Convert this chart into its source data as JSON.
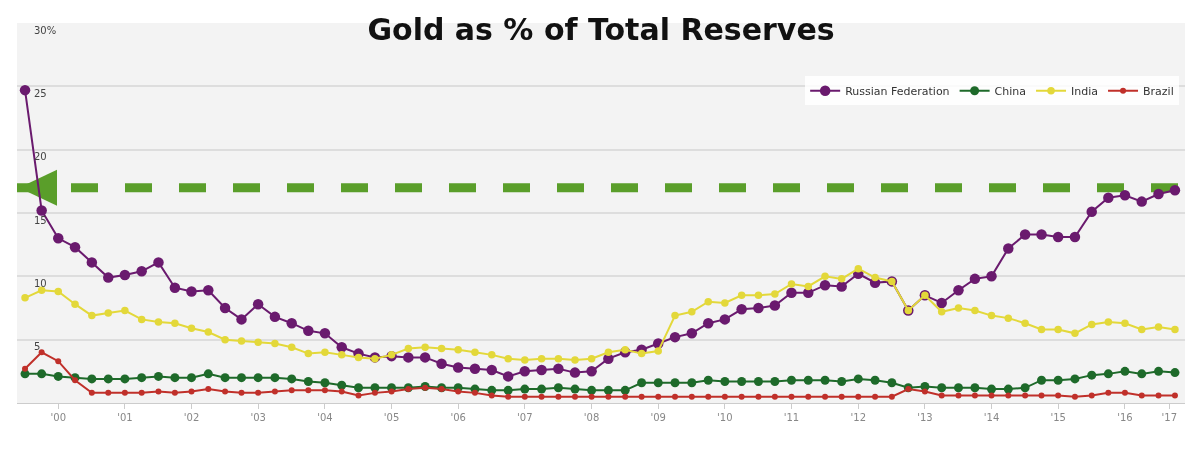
{
  "chart_data": {
    "type": "line",
    "title": "Gold as % of Total Reserves",
    "x": [
      "2000-01",
      "2000-04",
      "2000-07",
      "2000-10",
      "2001-01",
      "2001-04",
      "2001-07",
      "2001-10",
      "2002-01",
      "2002-04",
      "2002-07",
      "2002-10",
      "2003-01",
      "2003-04",
      "2003-07",
      "2003-10",
      "2004-01",
      "2004-04",
      "2004-07",
      "2004-10",
      "2005-01",
      "2005-04",
      "2005-07",
      "2005-10",
      "2006-01",
      "2006-04",
      "2006-07",
      "2006-10",
      "2007-01",
      "2007-04",
      "2007-07",
      "2007-10",
      "2008-01",
      "2008-04",
      "2008-07",
      "2008-10",
      "2009-01",
      "2009-04",
      "2009-07",
      "2009-10",
      "2010-01",
      "2010-04",
      "2010-07",
      "2010-10",
      "2011-01",
      "2011-04",
      "2011-07",
      "2011-10",
      "2012-01",
      "2012-04",
      "2012-07",
      "2012-10",
      "2013-01",
      "2013-04",
      "2013-07",
      "2013-10",
      "2014-01",
      "2014-04",
      "2014-07",
      "2014-10",
      "2015-01",
      "2015-04",
      "2015-07",
      "2015-10",
      "2016-01",
      "2016-04",
      "2016-07",
      "2016-10",
      "2017-01",
      "2017-04"
    ],
    "series": [
      {
        "name": "Russian Federation",
        "color": "#6a1a6e",
        "values": [
          24.7,
          15.2,
          13.0,
          12.3,
          11.1,
          9.9,
          10.1,
          10.4,
          11.1,
          9.1,
          8.8,
          8.9,
          7.5,
          6.6,
          7.8,
          6.8,
          6.3,
          5.7,
          5.5,
          4.4,
          3.9,
          3.6,
          3.7,
          3.6,
          3.6,
          3.1,
          2.8,
          2.7,
          2.6,
          2.1,
          2.5,
          2.6,
          2.7,
          2.4,
          2.5,
          3.5,
          4.0,
          4.2,
          4.7,
          5.2,
          5.5,
          6.3,
          6.6,
          7.4,
          7.5,
          7.7,
          8.7,
          8.7,
          9.3,
          9.2,
          10.2,
          9.5,
          9.6,
          7.3,
          8.5,
          7.9,
          8.9,
          9.8,
          10.0,
          12.2,
          13.3,
          13.3,
          13.1,
          13.1,
          15.1,
          16.2,
          16.4,
          15.9,
          16.5,
          16.8
        ]
      },
      {
        "name": "China",
        "color": "#1e6a2a",
        "values": [
          2.3,
          2.3,
          2.1,
          2.0,
          1.9,
          1.9,
          1.9,
          2.0,
          2.1,
          2.0,
          2.0,
          2.3,
          2.0,
          2.0,
          2.0,
          2.0,
          1.9,
          1.7,
          1.6,
          1.4,
          1.2,
          1.2,
          1.2,
          1.2,
          1.3,
          1.2,
          1.2,
          1.1,
          1.0,
          1.0,
          1.1,
          1.1,
          1.2,
          1.1,
          1.0,
          1.0,
          1.0,
          1.6,
          1.6,
          1.6,
          1.6,
          1.8,
          1.7,
          1.7,
          1.7,
          1.7,
          1.8,
          1.8,
          1.8,
          1.7,
          1.9,
          1.8,
          1.6,
          1.2,
          1.3,
          1.2,
          1.2,
          1.2,
          1.1,
          1.1,
          1.2,
          1.8,
          1.8,
          1.9,
          2.2,
          2.3,
          2.5,
          2.3,
          2.5,
          2.4
        ]
      },
      {
        "name": "India",
        "color": "#e3d83a",
        "values": [
          8.3,
          8.9,
          8.8,
          7.8,
          6.9,
          7.1,
          7.3,
          6.6,
          6.4,
          6.3,
          5.9,
          5.6,
          5.0,
          4.9,
          4.8,
          4.7,
          4.4,
          3.9,
          4.0,
          3.8,
          3.6,
          3.5,
          3.8,
          4.3,
          4.4,
          4.3,
          4.2,
          4.0,
          3.8,
          3.5,
          3.4,
          3.5,
          3.5,
          3.4,
          3.5,
          4.0,
          4.2,
          3.9,
          4.1,
          6.9,
          7.2,
          8.0,
          7.9,
          8.5,
          8.5,
          8.6,
          9.4,
          9.2,
          10.0,
          9.8,
          10.6,
          9.9,
          9.6,
          7.3,
          8.5,
          7.2,
          7.5,
          7.3,
          6.9,
          6.7,
          6.3,
          5.8,
          5.8,
          5.5,
          6.2,
          6.4,
          6.3,
          5.8,
          6.0,
          5.8
        ]
      },
      {
        "name": "Brazil",
        "color": "#c0302a",
        "values": [
          2.7,
          4.0,
          3.3,
          1.8,
          0.8,
          0.8,
          0.8,
          0.8,
          0.9,
          0.8,
          0.9,
          1.1,
          0.9,
          0.8,
          0.8,
          0.9,
          1.0,
          1.0,
          1.0,
          0.9,
          0.6,
          0.8,
          0.9,
          1.1,
          1.2,
          1.1,
          0.9,
          0.8,
          0.6,
          0.5,
          0.5,
          0.5,
          0.5,
          0.5,
          0.5,
          0.5,
          0.5,
          0.5,
          0.5,
          0.5,
          0.5,
          0.5,
          0.5,
          0.5,
          0.5,
          0.5,
          0.5,
          0.5,
          0.5,
          0.5,
          0.5,
          0.5,
          0.5,
          1.1,
          0.9,
          0.6,
          0.6,
          0.6,
          0.6,
          0.6,
          0.6,
          0.6,
          0.6,
          0.5,
          0.6,
          0.8,
          0.8,
          0.6,
          0.6,
          0.6
        ]
      }
    ],
    "xlim": [
      "1999-11-18",
      "2017-05-26"
    ],
    "xticks": [
      {
        "value": "2000-07",
        "label": "'00"
      },
      {
        "value": "2001-07",
        "label": "'01"
      },
      {
        "value": "2002-07",
        "label": "'02"
      },
      {
        "value": "2003-07",
        "label": "'03"
      },
      {
        "value": "2004-07",
        "label": "'04"
      },
      {
        "value": "2005-07",
        "label": "'05"
      },
      {
        "value": "2006-07",
        "label": "'06"
      },
      {
        "value": "2007-07",
        "label": "'07"
      },
      {
        "value": "2008-07",
        "label": "'08"
      },
      {
        "value": "2009-07",
        "label": "'09"
      },
      {
        "value": "2010-07",
        "label": "'10"
      },
      {
        "value": "2011-07",
        "label": "'11"
      },
      {
        "value": "2012-07",
        "label": "'12"
      },
      {
        "value": "2013-07",
        "label": "'13"
      },
      {
        "value": "2014-07",
        "label": "'14"
      },
      {
        "value": "2015-07",
        "label": "'15"
      },
      {
        "value": "2016-07",
        "label": "'16"
      },
      {
        "value": "2017-03",
        "label": "'17"
      }
    ],
    "ylim": [
      0,
      30
    ],
    "yticks": [
      {
        "value": 0,
        "label": null
      },
      5,
      10,
      15,
      20,
      25,
      {
        "value": 30,
        "label": "30%"
      }
    ],
    "ref_lines": [
      {
        "axis": "y",
        "value": 17,
        "color": "#5a9e2a",
        "line_style": "dashed"
      }
    ],
    "grid": "y",
    "legend": "top right",
    "marker": "circle",
    "line_style": "solid"
  }
}
